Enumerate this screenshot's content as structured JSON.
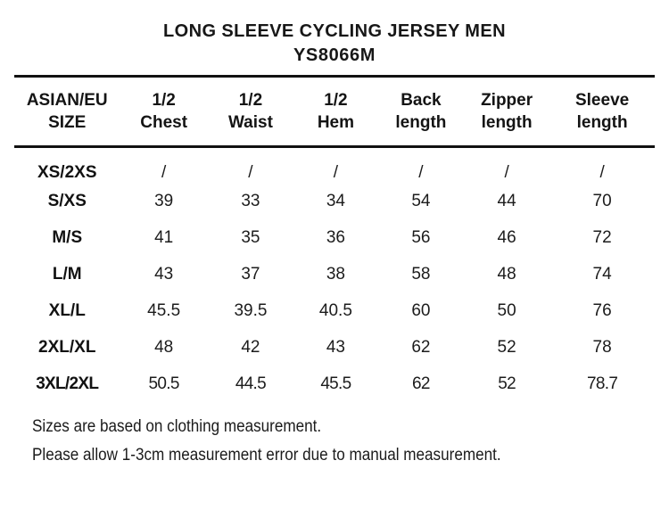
{
  "header": {
    "title": "LONG SLEEVE CYCLING JERSEY MEN",
    "model": "YS8066M"
  },
  "chart_data": {
    "type": "table",
    "title": "LONG SLEEVE CYCLING JERSEY MEN",
    "subtitle": "YS8066M",
    "columns": [
      "ASIAN/EU\nSIZE",
      "1/2\nChest",
      "1/2\nWaist",
      "1/2\nHem",
      "Back\nlength",
      "Zipper\nlength",
      "Sleeve\nlength"
    ],
    "rows": [
      [
        "XS/2XS",
        "/",
        "/",
        "/",
        "/",
        "/",
        "/"
      ],
      [
        "S/XS",
        "39",
        "33",
        "34",
        "54",
        "44",
        "70"
      ],
      [
        "M/S",
        "41",
        "35",
        "36",
        "56",
        "46",
        "72"
      ],
      [
        "L/M",
        "43",
        "37",
        "38",
        "58",
        "48",
        "74"
      ],
      [
        "XL/L",
        "45.5",
        "39.5",
        "40.5",
        "60",
        "50",
        "76"
      ],
      [
        "2XL/XL",
        "48",
        "42",
        "43",
        "62",
        "52",
        "78"
      ],
      [
        "3XL/2XL",
        "50.5",
        "44.5",
        "45.5",
        "62",
        "52",
        "78.7"
      ]
    ],
    "units_note": "cm"
  },
  "notes": [
    "Sizes are based on clothing measurement.",
    "Please allow 1-3cm measurement error due to manual measurement."
  ]
}
